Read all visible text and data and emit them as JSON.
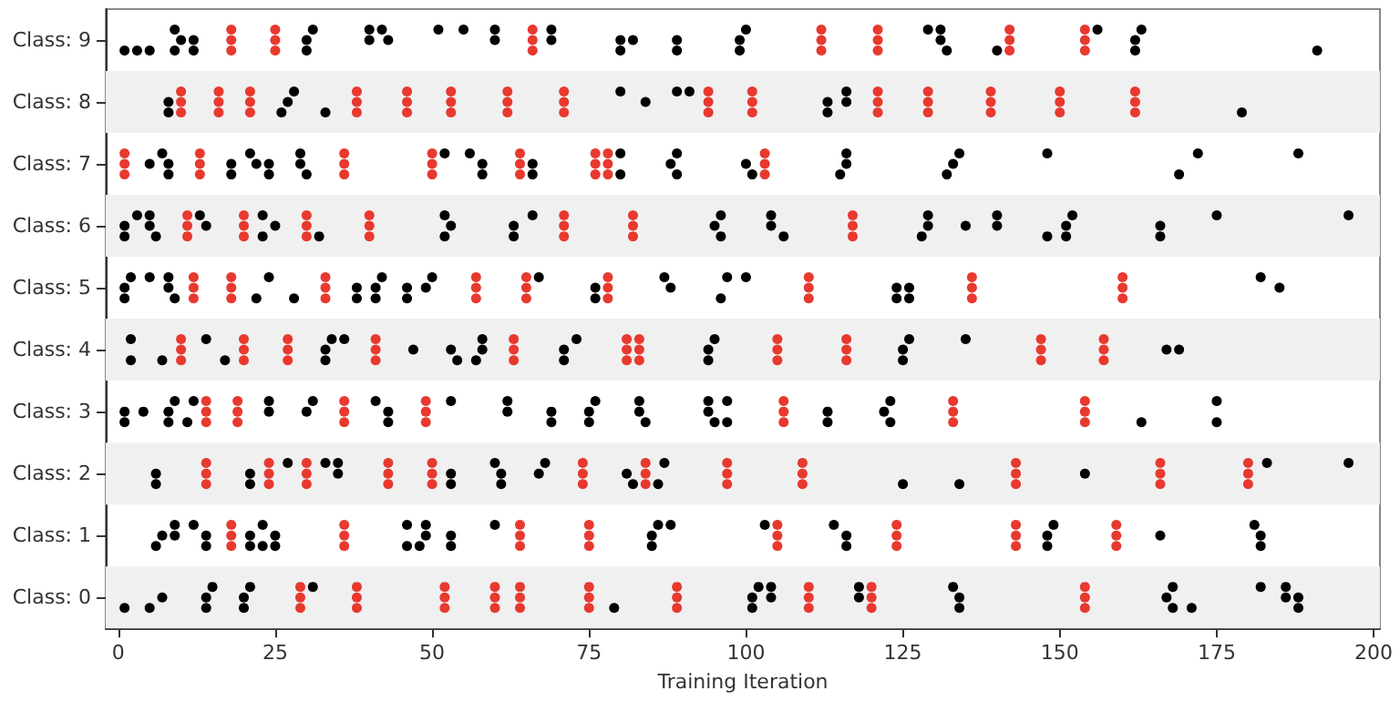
{
  "chart_data": {
    "type": "scatter",
    "xlabel": "Training Iteration",
    "xlim": [
      -2,
      201
    ],
    "xticks": [
      0,
      25,
      50,
      75,
      100,
      125,
      150,
      175,
      200
    ],
    "ylim": [
      -0.5,
      9.5
    ],
    "yticks": [
      {
        "value": 0,
        "label": "Class: 0"
      },
      {
        "value": 1,
        "label": "Class: 1"
      },
      {
        "value": 2,
        "label": "Class: 2"
      },
      {
        "value": 3,
        "label": "Class: 3"
      },
      {
        "value": 4,
        "label": "Class: 4"
      },
      {
        "value": 5,
        "label": "Class: 5"
      },
      {
        "value": 6,
        "label": "Class: 6"
      },
      {
        "value": 7,
        "label": "Class: 7"
      },
      {
        "value": 8,
        "label": "Class: 8"
      },
      {
        "value": 9,
        "label": "Class: 9"
      }
    ],
    "bands": [
      {
        "axis": "y",
        "from": -0.5,
        "to": 0.5,
        "color": "#f0f0f0"
      },
      {
        "axis": "y",
        "from": 1.5,
        "to": 2.5,
        "color": "#f0f0f0"
      },
      {
        "axis": "y",
        "from": 3.5,
        "to": 4.5,
        "color": "#f0f0f0"
      },
      {
        "axis": "y",
        "from": 5.5,
        "to": 6.5,
        "color": "#f0f0f0"
      },
      {
        "axis": "y",
        "from": 7.5,
        "to": 8.5,
        "color": "#f0f0f0"
      }
    ],
    "grid": false,
    "marker": "circle",
    "series": [
      {
        "color": "#000000",
        "x": [
          1,
          3,
          5,
          9,
          9,
          10,
          12,
          12,
          30,
          30,
          31,
          40,
          40,
          42,
          43,
          51,
          55,
          60,
          60,
          69,
          69,
          80,
          80,
          82,
          89,
          89,
          99,
          99,
          100,
          129,
          131,
          131,
          132,
          140,
          156,
          162,
          162,
          163,
          191
        ],
        "values": [
          8.83,
          8.83,
          8.83,
          9.17,
          8.83,
          9,
          9,
          8.83,
          9,
          8.83,
          9.17,
          9.17,
          9,
          9.17,
          9,
          9.17,
          9.17,
          9.17,
          9,
          9.17,
          9,
          9,
          8.83,
          9,
          9,
          8.83,
          9,
          8.83,
          9.17,
          9.17,
          9.17,
          9,
          8.83,
          8.83,
          9.17,
          9,
          8.83,
          9.17,
          8.83
        ]
      },
      {
        "color": "#000000",
        "x": [
          8,
          8,
          26,
          27,
          28,
          33,
          80,
          84,
          89,
          91,
          113,
          113,
          116,
          116,
          179
        ],
        "values": [
          8,
          7.83,
          7.83,
          8,
          8.17,
          7.83,
          8.17,
          8,
          8.17,
          8.17,
          8,
          7.83,
          8.17,
          8,
          7.83
        ]
      },
      {
        "color": "#000000",
        "x": [
          5,
          7,
          8,
          8,
          18,
          18,
          21,
          22,
          24,
          24,
          29,
          29,
          30,
          52,
          56,
          58,
          58,
          66,
          66,
          80,
          80,
          88,
          89,
          89,
          100,
          101,
          115,
          116,
          116,
          132,
          133,
          134,
          148,
          169,
          172,
          188
        ],
        "values": [
          7,
          7.17,
          7,
          6.83,
          7,
          6.83,
          7.17,
          7,
          7,
          6.83,
          7.17,
          7,
          6.83,
          7.17,
          7.17,
          7,
          6.83,
          7,
          6.83,
          7.17,
          6.83,
          7,
          7.17,
          6.83,
          7,
          6.83,
          6.83,
          7.17,
          7,
          6.83,
          7,
          7.17,
          7.17,
          6.83,
          7.17,
          7.17
        ]
      },
      {
        "color": "#000000",
        "x": [
          1,
          1,
          3,
          5,
          5,
          6,
          13,
          14,
          23,
          23,
          25,
          32,
          52,
          52,
          53,
          63,
          63,
          66,
          95,
          96,
          96,
          104,
          104,
          106,
          128,
          129,
          129,
          135,
          140,
          140,
          148,
          151,
          151,
          152,
          166,
          166,
          175,
          196
        ],
        "values": [
          6,
          5.83,
          6.17,
          6.17,
          6,
          5.83,
          6.17,
          6,
          6.17,
          5.83,
          6,
          5.83,
          6.17,
          5.83,
          6,
          6,
          5.83,
          6.17,
          6,
          6.17,
          5.83,
          6.17,
          6,
          5.83,
          5.83,
          6.17,
          6,
          6,
          6.17,
          6,
          5.83,
          6,
          5.83,
          6.17,
          6,
          5.83,
          6.17,
          6.17
        ]
      },
      {
        "color": "#000000",
        "x": [
          1,
          1,
          2,
          5,
          8,
          8,
          9,
          22,
          24,
          28,
          38,
          38,
          41,
          41,
          42,
          46,
          46,
          49,
          50,
          67,
          76,
          76,
          87,
          88,
          96,
          97,
          100,
          124,
          124,
          126,
          126,
          182,
          185
        ],
        "values": [
          5,
          4.83,
          5.17,
          5.17,
          5.17,
          5,
          4.83,
          4.83,
          5.17,
          4.83,
          5,
          4.83,
          5,
          4.83,
          5.17,
          5,
          4.83,
          5,
          5.17,
          5.17,
          5,
          4.83,
          5.17,
          5,
          4.83,
          5.17,
          5.17,
          5,
          4.83,
          5,
          4.83,
          5.17,
          5
        ]
      },
      {
        "color": "#000000",
        "x": [
          2,
          2,
          7,
          14,
          17,
          33,
          33,
          34,
          36,
          47,
          53,
          54,
          57,
          58,
          58,
          71,
          71,
          73,
          94,
          94,
          95,
          125,
          125,
          126,
          135,
          167,
          169
        ],
        "values": [
          4.17,
          3.83,
          3.83,
          4.17,
          3.83,
          4,
          3.83,
          4.17,
          4.17,
          4,
          4,
          3.83,
          3.83,
          4,
          4.17,
          4,
          3.83,
          4.17,
          4,
          3.83,
          4.17,
          4,
          3.83,
          4.17,
          4.17,
          4,
          4
        ]
      },
      {
        "color": "#000000",
        "x": [
          1,
          1,
          4,
          8,
          8,
          9,
          11,
          12,
          24,
          24,
          30,
          31,
          41,
          43,
          43,
          53,
          62,
          62,
          69,
          69,
          75,
          75,
          76,
          83,
          83,
          84,
          94,
          94,
          95,
          97,
          97,
          113,
          113,
          122,
          123,
          123,
          163,
          175,
          175
        ],
        "values": [
          3,
          2.83,
          3,
          3,
          2.83,
          3.17,
          2.83,
          3.17,
          3.17,
          3,
          3,
          3.17,
          3.17,
          3,
          2.83,
          3.17,
          3.17,
          3,
          3,
          2.83,
          3,
          2.83,
          3.17,
          3.17,
          3,
          2.83,
          3.17,
          3,
          2.83,
          3.17,
          2.83,
          3,
          2.83,
          3,
          3.17,
          2.83,
          2.83,
          3.17,
          2.83
        ]
      },
      {
        "color": "#000000",
        "x": [
          6,
          6,
          21,
          21,
          27,
          33,
          35,
          35,
          53,
          53,
          60,
          61,
          61,
          67,
          68,
          81,
          82,
          86,
          87,
          125,
          134,
          154,
          183,
          196
        ],
        "values": [
          2,
          1.83,
          2,
          1.83,
          2.17,
          2.17,
          2.17,
          2,
          2,
          1.83,
          2.17,
          2,
          1.83,
          2,
          2.17,
          2,
          1.83,
          1.83,
          2.17,
          1.83,
          1.83,
          2,
          2.17,
          2.17
        ]
      },
      {
        "color": "#000000",
        "x": [
          6,
          7,
          9,
          9,
          12,
          14,
          14,
          21,
          21,
          23,
          23,
          25,
          25,
          46,
          46,
          48,
          49,
          49,
          53,
          53,
          60,
          85,
          85,
          86,
          88,
          103,
          114,
          116,
          116,
          148,
          148,
          149,
          166,
          181,
          182,
          182
        ],
        "values": [
          0.83,
          1,
          1.17,
          1,
          1.17,
          1,
          0.83,
          1,
          0.83,
          1.17,
          0.83,
          1,
          0.83,
          1.17,
          0.83,
          0.83,
          1.17,
          1,
          1,
          0.83,
          1.17,
          1,
          0.83,
          1.17,
          1.17,
          1.17,
          1.17,
          1,
          0.83,
          1,
          0.83,
          1.17,
          1,
          1.17,
          1,
          0.83
        ]
      },
      {
        "color": "#000000",
        "x": [
          1,
          5,
          7,
          14,
          14,
          15,
          20,
          20,
          21,
          31,
          79,
          101,
          101,
          102,
          104,
          104,
          118,
          118,
          133,
          134,
          134,
          167,
          168,
          168,
          171,
          182,
          186,
          186,
          188,
          188
        ],
        "values": [
          -0.17,
          -0.17,
          0,
          0,
          -0.17,
          0.17,
          0,
          -0.17,
          0.17,
          0.17,
          -0.17,
          0,
          -0.17,
          0.17,
          0.17,
          0,
          0.17,
          0,
          0.17,
          0,
          -0.17,
          0,
          0.17,
          -0.17,
          -0.17,
          0.17,
          0.17,
          0,
          0,
          -0.17
        ]
      },
      {
        "color": "#e8392f",
        "x": [
          18,
          18,
          18,
          25,
          25,
          25,
          66,
          66,
          66,
          112,
          112,
          112,
          121,
          121,
          121,
          142,
          142,
          142,
          154,
          154,
          154
        ],
        "values": [
          9.17,
          9,
          8.83,
          9.17,
          9,
          8.83,
          9.17,
          9,
          8.83,
          9.17,
          9,
          8.83,
          9.17,
          9,
          8.83,
          9.17,
          9,
          8.83,
          9.17,
          9,
          8.83
        ]
      },
      {
        "color": "#e8392f",
        "x": [
          10,
          10,
          10,
          16,
          16,
          16,
          21,
          21,
          21,
          38,
          38,
          38,
          46,
          46,
          46,
          53,
          53,
          53,
          62,
          62,
          62,
          71,
          71,
          71,
          94,
          94,
          94,
          101,
          101,
          101,
          121,
          121,
          121,
          129,
          129,
          129,
          139,
          139,
          139,
          150,
          150,
          150,
          162,
          162,
          162
        ],
        "values": [
          8.17,
          8,
          7.83,
          8.17,
          8,
          7.83,
          8.17,
          8,
          7.83,
          8.17,
          8,
          7.83,
          8.17,
          8,
          7.83,
          8.17,
          8,
          7.83,
          8.17,
          8,
          7.83,
          8.17,
          8,
          7.83,
          8.17,
          8,
          7.83,
          8.17,
          8,
          7.83,
          8.17,
          8,
          7.83,
          8.17,
          8,
          7.83,
          8.17,
          8,
          7.83,
          8.17,
          8,
          7.83,
          8.17,
          8,
          7.83
        ]
      },
      {
        "color": "#e8392f",
        "x": [
          1,
          1,
          1,
          13,
          13,
          13,
          36,
          36,
          36,
          50,
          50,
          50,
          64,
          64,
          64,
          76,
          76,
          76,
          78,
          78,
          78,
          103,
          103,
          103
        ],
        "values": [
          7.17,
          7,
          6.83,
          7.17,
          7,
          6.83,
          7.17,
          7,
          6.83,
          7.17,
          7,
          6.83,
          7.17,
          7,
          6.83,
          7.17,
          7,
          6.83,
          7.17,
          7,
          6.83,
          7.17,
          7,
          6.83
        ]
      },
      {
        "color": "#e8392f",
        "x": [
          11,
          11,
          11,
          20,
          20,
          20,
          30,
          30,
          30,
          40,
          40,
          40,
          71,
          71,
          71,
          82,
          82,
          82,
          117,
          117,
          117
        ],
        "values": [
          6.17,
          6,
          5.83,
          6.17,
          6,
          5.83,
          6.17,
          6,
          5.83,
          6.17,
          6,
          5.83,
          6.17,
          6,
          5.83,
          6.17,
          6,
          5.83,
          6.17,
          6,
          5.83
        ]
      },
      {
        "color": "#e8392f",
        "x": [
          12,
          12,
          12,
          18,
          18,
          18,
          33,
          33,
          33,
          57,
          57,
          57,
          65,
          65,
          65,
          78,
          78,
          78,
          110,
          110,
          110,
          136,
          136,
          136,
          160,
          160,
          160
        ],
        "values": [
          5.17,
          5,
          4.83,
          5.17,
          5,
          4.83,
          5.17,
          5,
          4.83,
          5.17,
          5,
          4.83,
          5.17,
          5,
          4.83,
          5.17,
          5,
          4.83,
          5.17,
          5,
          4.83,
          5.17,
          5,
          4.83,
          5.17,
          5,
          4.83
        ]
      },
      {
        "color": "#e8392f",
        "x": [
          10,
          10,
          10,
          20,
          20,
          20,
          27,
          27,
          27,
          41,
          41,
          41,
          63,
          63,
          63,
          81,
          81,
          81,
          83,
          83,
          83,
          105,
          105,
          105,
          116,
          116,
          116,
          147,
          147,
          147,
          157,
          157,
          157
        ],
        "values": [
          4.17,
          4,
          3.83,
          4.17,
          4,
          3.83,
          4.17,
          4,
          3.83,
          4.17,
          4,
          3.83,
          4.17,
          4,
          3.83,
          4.17,
          4,
          3.83,
          4.17,
          4,
          3.83,
          4.17,
          4,
          3.83,
          4.17,
          4,
          3.83,
          4.17,
          4,
          3.83,
          4.17,
          4,
          3.83
        ]
      },
      {
        "color": "#e8392f",
        "x": [
          14,
          14,
          14,
          19,
          19,
          19,
          36,
          36,
          36,
          49,
          49,
          49,
          106,
          106,
          106,
          133,
          133,
          133,
          154,
          154,
          154
        ],
        "values": [
          3.17,
          3,
          2.83,
          3.17,
          3,
          2.83,
          3.17,
          3,
          2.83,
          3.17,
          3,
          2.83,
          3.17,
          3,
          2.83,
          3.17,
          3,
          2.83,
          3.17,
          3,
          2.83
        ]
      },
      {
        "color": "#e8392f",
        "x": [
          14,
          14,
          14,
          24,
          24,
          24,
          30,
          30,
          30,
          43,
          43,
          43,
          50,
          50,
          50,
          74,
          74,
          74,
          84,
          84,
          84,
          97,
          97,
          97,
          109,
          109,
          109,
          143,
          143,
          143,
          166,
          166,
          166,
          180,
          180,
          180
        ],
        "values": [
          2.17,
          2,
          1.83,
          2.17,
          2,
          1.83,
          2.17,
          2,
          1.83,
          2.17,
          2,
          1.83,
          2.17,
          2,
          1.83,
          2.17,
          2,
          1.83,
          2.17,
          2,
          1.83,
          2.17,
          2,
          1.83,
          2.17,
          2,
          1.83,
          2.17,
          2,
          1.83,
          2.17,
          2,
          1.83,
          2.17,
          2,
          1.83
        ]
      },
      {
        "color": "#e8392f",
        "x": [
          18,
          18,
          18,
          36,
          36,
          36,
          64,
          64,
          64,
          75,
          75,
          75,
          105,
          105,
          105,
          124,
          124,
          124,
          143,
          143,
          143,
          159,
          159,
          159
        ],
        "values": [
          1.17,
          1,
          0.83,
          1.17,
          1,
          0.83,
          1.17,
          1,
          0.83,
          1.17,
          1,
          0.83,
          1.17,
          1,
          0.83,
          1.17,
          1,
          0.83,
          1.17,
          1,
          0.83,
          1.17,
          1,
          0.83
        ]
      },
      {
        "color": "#e8392f",
        "x": [
          29,
          29,
          29,
          38,
          38,
          38,
          52,
          52,
          52,
          60,
          60,
          60,
          64,
          64,
          64,
          75,
          75,
          75,
          89,
          89,
          89,
          110,
          110,
          110,
          120,
          120,
          120,
          154,
          154,
          154
        ],
        "values": [
          0.17,
          0,
          -0.17,
          0.17,
          0,
          -0.17,
          0.17,
          0,
          -0.17,
          0.17,
          0,
          -0.17,
          0.17,
          0,
          -0.17,
          0.17,
          0,
          -0.17,
          0.17,
          0,
          -0.17,
          0.17,
          0,
          -0.17,
          0.17,
          0,
          -0.17,
          0.17,
          0,
          -0.17
        ]
      }
    ]
  }
}
